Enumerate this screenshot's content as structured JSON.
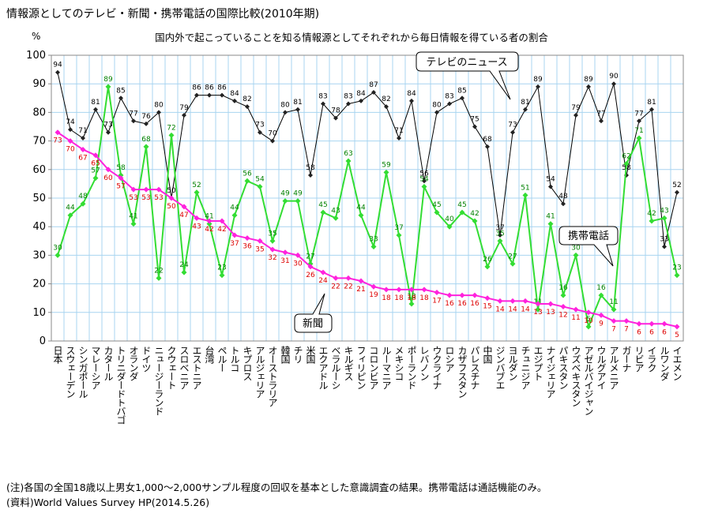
{
  "chart_data": {
    "type": "line",
    "title": "情報源としてのテレビ・新聞・携帯電話の国際比較(2010年期)",
    "subtitle": "国内外で起こっていることを知る情報源としてそれぞれから毎日情報を得ている者の割合",
    "y_label": "%",
    "notes": [
      "(注)各国の全国18歳以上男女1,000～2,000サンプル程度の回収を基本とした意識調査の結果。携帯電話は通話機能のみ。",
      "(資料)World Values Survey HP(2014.5.26)"
    ],
    "categories": [
      "日本",
      "スウェーデン",
      "シンガポール",
      "マレーシア",
      "カタール",
      "トリニダードトバゴ",
      "オランダ",
      "ドイツ",
      "ニュージーランド",
      "クウェート",
      "スロベニア",
      "エストニア",
      "台湾",
      "ペルー",
      "トルコ",
      "キプロス",
      "アルジェリア",
      "オーストラリア",
      "韓国",
      "チリ",
      "米国",
      "エクアドル",
      "ベラルーシ",
      "キルギス",
      "フィリピン",
      "コロンビア",
      "ルーマニア",
      "メキシコ",
      "ポーランド",
      "レバノン",
      "ウクライナ",
      "ロシア",
      "カザフスタン",
      "パレスチナ",
      "中国",
      "ジンバブエ",
      "ヨルダン",
      "チュニジア",
      "エジプト",
      "ナイジェリア",
      "パキスタン",
      "ウズベキスタン",
      "アゼルバイジャン",
      "ウルグアイ",
      "アルメニア",
      "ガーナ",
      "リビア",
      "イラク",
      "ルワンダ",
      "イエメン"
    ],
    "series": [
      {
        "name": "テレビのニュース",
        "color": "#000000",
        "label_color": "#000000",
        "values": [
          94,
          74,
          71,
          81,
          73,
          85,
          77,
          76,
          80,
          50,
          79,
          86,
          86,
          86,
          84,
          82,
          73,
          70,
          80,
          81,
          58,
          83,
          78,
          83,
          84,
          87,
          82,
          71,
          84,
          56,
          80,
          83,
          85,
          75,
          68,
          37,
          73,
          81,
          89,
          54,
          48,
          79,
          89,
          77,
          90,
          58,
          77,
          81,
          33,
          52
        ]
      },
      {
        "name": "携帯電話",
        "color": "#33dd33",
        "label_color": "#008000",
        "values": [
          30,
          44,
          48,
          57,
          89,
          58,
          41,
          68,
          22,
          72,
          24,
          52,
          41,
          23,
          44,
          56,
          54,
          35,
          49,
          49,
          27,
          45,
          43,
          63,
          44,
          33,
          59,
          37,
          13,
          54,
          45,
          40,
          45,
          42,
          26,
          35,
          27,
          51,
          11,
          41,
          16,
          30,
          5,
          16,
          11,
          62,
          71,
          42,
          43,
          23
        ]
      },
      {
        "name": "新聞",
        "color": "#ff22dd",
        "label_color": "#dd0000",
        "values": [
          73,
          70,
          67,
          65,
          60,
          57,
          53,
          53,
          53,
          50,
          47,
          43,
          42,
          42,
          37,
          36,
          35,
          32,
          31,
          30,
          26,
          24,
          22,
          22,
          21,
          19,
          18,
          18,
          18,
          18,
          17,
          16,
          16,
          16,
          15,
          14,
          14,
          14,
          13,
          13,
          12,
          11,
          10,
          9,
          7,
          7,
          6,
          6,
          6,
          5
        ]
      }
    ],
    "ylim": [
      0,
      100
    ],
    "yticks": [
      0,
      10,
      20,
      30,
      40,
      50,
      60,
      70,
      80,
      90,
      100
    ],
    "grid": true
  }
}
